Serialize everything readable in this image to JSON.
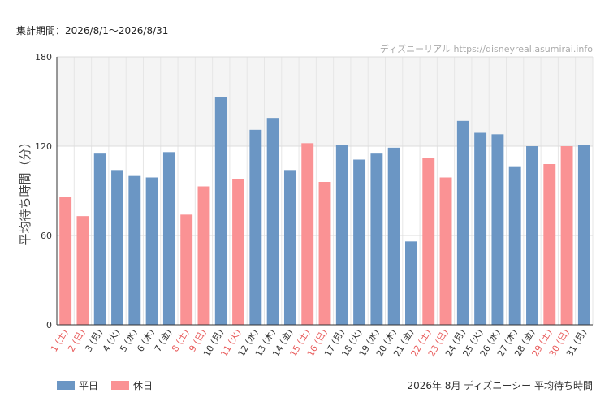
{
  "header": {
    "period": "集計期間：2026/8/1～2026/8/31"
  },
  "credit": "ディズニーリアル https://disneyreal.asumirai.info",
  "footer": {
    "caption": "2026年 8月 ディズニーシー 平均待ち時間"
  },
  "colors": {
    "weekday": "#6b96c4",
    "holiday": "#fa9294",
    "holiday_label": "#e85a5a",
    "band": "#f4f4f4"
  },
  "chart_data": {
    "type": "bar",
    "ylabel": "平均待ち時間（分）",
    "ylim": [
      0,
      180
    ],
    "yticks": [
      0,
      60,
      120,
      180
    ],
    "grid": true,
    "shaded_band": [
      120,
      180
    ],
    "legend_position": "bottom-left",
    "series": [
      {
        "name": "平日",
        "key": "weekday"
      },
      {
        "name": "休日",
        "key": "holiday"
      }
    ],
    "categories": [
      "1 (土)",
      "2 (日)",
      "3 (月)",
      "4 (火)",
      "5 (水)",
      "6 (木)",
      "7 (金)",
      "8 (土)",
      "9 (日)",
      "10 (月)",
      "11 (火)",
      "12 (水)",
      "13 (木)",
      "14 (金)",
      "15 (土)",
      "16 (日)",
      "17 (月)",
      "18 (火)",
      "19 (水)",
      "20 (木)",
      "21 (金)",
      "22 (土)",
      "23 (日)",
      "24 (月)",
      "25 (火)",
      "26 (水)",
      "27 (木)",
      "28 (金)",
      "29 (土)",
      "30 (日)",
      "31 (月)"
    ],
    "types": [
      "holiday",
      "holiday",
      "weekday",
      "weekday",
      "weekday",
      "weekday",
      "weekday",
      "holiday",
      "holiday",
      "weekday",
      "holiday",
      "weekday",
      "weekday",
      "weekday",
      "holiday",
      "holiday",
      "weekday",
      "weekday",
      "weekday",
      "weekday",
      "weekday",
      "holiday",
      "holiday",
      "weekday",
      "weekday",
      "weekday",
      "weekday",
      "weekday",
      "holiday",
      "holiday",
      "weekday"
    ],
    "values": [
      86,
      73,
      115,
      104,
      100,
      99,
      116,
      74,
      93,
      153,
      98,
      131,
      139,
      104,
      122,
      96,
      121,
      111,
      115,
      119,
      56,
      112,
      99,
      137,
      129,
      128,
      106,
      120,
      108,
      120,
      121
    ]
  }
}
